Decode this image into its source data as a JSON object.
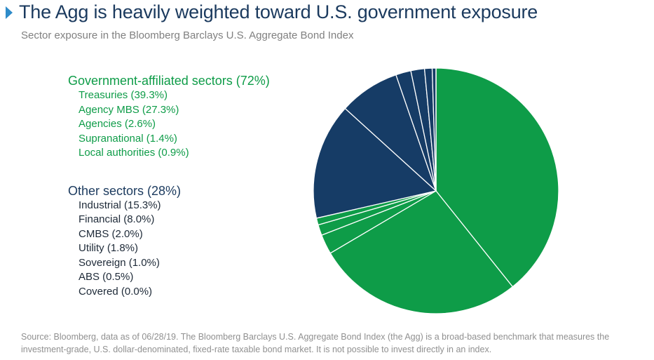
{
  "header": {
    "title": "The Agg is heavily weighted toward U.S. government exposure",
    "subtitle": "Sector exposure in the Bloomberg Barclays U.S. Aggregate Bond Index"
  },
  "legend": {
    "government": {
      "heading": "Government-affiliated sectors (72%)",
      "items": [
        "Treasuries (39.3%)",
        "Agency MBS (27.3%)",
        "Agencies (2.6%)",
        "Supranational (1.4%)",
        "Local authorities (0.9%)"
      ]
    },
    "other": {
      "heading": "Other sectors (28%)",
      "items": [
        "Industrial (15.3%)",
        "Financial (8.0%)",
        "CMBS (2.0%)",
        "Utility (1.8%)",
        "Sovereign (1.0%)",
        "ABS (0.5%)",
        "Covered (0.0%)"
      ]
    }
  },
  "colors": {
    "government": "#0e9c48",
    "other": "#163c66",
    "title": "#1b3a5e",
    "accent": "#2e8bc9"
  },
  "chart_data": {
    "type": "pie",
    "title": "Sector exposure in the Bloomberg Barclays U.S. Aggregate Bond Index",
    "slices": [
      {
        "label": "Treasuries",
        "value": 39.3,
        "group": "government"
      },
      {
        "label": "Agency MBS",
        "value": 27.3,
        "group": "government"
      },
      {
        "label": "Agencies",
        "value": 2.6,
        "group": "government"
      },
      {
        "label": "Supranational",
        "value": 1.4,
        "group": "government"
      },
      {
        "label": "Local authorities",
        "value": 0.9,
        "group": "government"
      },
      {
        "label": "Industrial",
        "value": 15.3,
        "group": "other"
      },
      {
        "label": "Financial",
        "value": 8.0,
        "group": "other"
      },
      {
        "label": "CMBS",
        "value": 2.0,
        "group": "other"
      },
      {
        "label": "Utility",
        "value": 1.8,
        "group": "other"
      },
      {
        "label": "Sovereign",
        "value": 1.0,
        "group": "other"
      },
      {
        "label": "ABS",
        "value": 0.5,
        "group": "other"
      },
      {
        "label": "Covered",
        "value": 0.0,
        "group": "other"
      }
    ],
    "group_totals": {
      "government": 72,
      "other": 28
    },
    "start": "12 o'clock",
    "direction": "clockwise",
    "legend_placement": "left"
  },
  "footer": {
    "source": "Source: Bloomberg, data as of 06/28/19. The Bloomberg Barclays U.S. Aggregate Bond Index (the Agg) is a broad-based benchmark that measures the investment-grade, U.S. dollar-denominated, fixed-rate taxable bond market. It is not possible to invest directly in an index."
  }
}
